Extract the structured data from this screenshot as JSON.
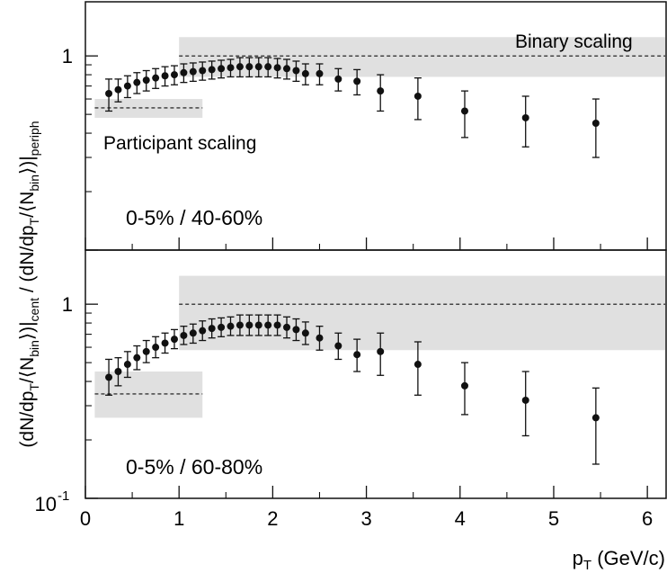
{
  "chart_data": [
    {
      "type": "scatter",
      "panel": "top",
      "label": "0-5% / 40-60%",
      "yscale": "log",
      "ylim": [
        0.1,
        1.9
      ],
      "xlim": [
        0,
        6.2
      ],
      "ytick_labels": [
        "1"
      ],
      "bands": [
        {
          "name": "Binary scaling",
          "x": [
            1.0,
            6.2
          ],
          "y_low": 0.78,
          "y_high": 1.25,
          "center": 1.0
        },
        {
          "name": "Participant scaling",
          "x": [
            0.1,
            1.25
          ],
          "y_low": 0.48,
          "y_high": 0.6,
          "center": 0.54
        }
      ],
      "points": [
        {
          "x": 0.25,
          "y": 0.64,
          "lo": 0.52,
          "hi": 0.76
        },
        {
          "x": 0.35,
          "y": 0.67,
          "lo": 0.58,
          "hi": 0.76
        },
        {
          "x": 0.45,
          "y": 0.7,
          "lo": 0.61,
          "hi": 0.79
        },
        {
          "x": 0.55,
          "y": 0.73,
          "lo": 0.64,
          "hi": 0.82
        },
        {
          "x": 0.65,
          "y": 0.75,
          "lo": 0.66,
          "hi": 0.84
        },
        {
          "x": 0.75,
          "y": 0.77,
          "lo": 0.68,
          "hi": 0.86
        },
        {
          "x": 0.85,
          "y": 0.79,
          "lo": 0.7,
          "hi": 0.88
        },
        {
          "x": 0.95,
          "y": 0.8,
          "lo": 0.71,
          "hi": 0.89
        },
        {
          "x": 1.05,
          "y": 0.82,
          "lo": 0.73,
          "hi": 0.91
        },
        {
          "x": 1.15,
          "y": 0.83,
          "lo": 0.74,
          "hi": 0.92
        },
        {
          "x": 1.25,
          "y": 0.84,
          "lo": 0.75,
          "hi": 0.93
        },
        {
          "x": 1.35,
          "y": 0.85,
          "lo": 0.76,
          "hi": 0.94
        },
        {
          "x": 1.45,
          "y": 0.86,
          "lo": 0.77,
          "hi": 0.95
        },
        {
          "x": 1.55,
          "y": 0.87,
          "lo": 0.78,
          "hi": 0.96
        },
        {
          "x": 1.65,
          "y": 0.88,
          "lo": 0.78,
          "hi": 0.98
        },
        {
          "x": 1.75,
          "y": 0.88,
          "lo": 0.78,
          "hi": 0.98
        },
        {
          "x": 1.85,
          "y": 0.88,
          "lo": 0.78,
          "hi": 0.98
        },
        {
          "x": 1.95,
          "y": 0.88,
          "lo": 0.78,
          "hi": 0.98
        },
        {
          "x": 2.05,
          "y": 0.87,
          "lo": 0.77,
          "hi": 0.97
        },
        {
          "x": 2.15,
          "y": 0.86,
          "lo": 0.76,
          "hi": 0.96
        },
        {
          "x": 2.25,
          "y": 0.84,
          "lo": 0.74,
          "hi": 0.94
        },
        {
          "x": 2.35,
          "y": 0.81,
          "lo": 0.71,
          "hi": 0.91
        },
        {
          "x": 2.5,
          "y": 0.81,
          "lo": 0.71,
          "hi": 0.91
        },
        {
          "x": 2.7,
          "y": 0.76,
          "lo": 0.66,
          "hi": 0.86
        },
        {
          "x": 2.9,
          "y": 0.74,
          "lo": 0.63,
          "hi": 0.85
        },
        {
          "x": 3.15,
          "y": 0.66,
          "lo": 0.52,
          "hi": 0.8
        },
        {
          "x": 3.55,
          "y": 0.62,
          "lo": 0.47,
          "hi": 0.77
        },
        {
          "x": 4.05,
          "y": 0.52,
          "lo": 0.38,
          "hi": 0.66
        },
        {
          "x": 4.7,
          "y": 0.48,
          "lo": 0.34,
          "hi": 0.62
        },
        {
          "x": 5.45,
          "y": 0.45,
          "lo": 0.3,
          "hi": 0.6
        }
      ]
    },
    {
      "type": "scatter",
      "panel": "bottom",
      "label": "0-5% / 60-80%",
      "yscale": "log",
      "ylim": [
        0.1,
        1.9
      ],
      "xlim": [
        0,
        6.2
      ],
      "ytick_labels": [
        "1",
        "10",
        "-1"
      ],
      "bands": [
        {
          "name": "Binary scaling",
          "x": [
            1.0,
            6.2
          ],
          "y_low": 0.58,
          "y_high": 1.4,
          "center": 1.0
        },
        {
          "name": "Participant scaling",
          "x": [
            0.1,
            1.25
          ],
          "y_low": 0.26,
          "y_high": 0.45,
          "center": 0.345
        }
      ],
      "points": [
        {
          "x": 0.25,
          "y": 0.42,
          "lo": 0.34,
          "hi": 0.52
        },
        {
          "x": 0.35,
          "y": 0.45,
          "lo": 0.38,
          "hi": 0.53
        },
        {
          "x": 0.45,
          "y": 0.49,
          "lo": 0.42,
          "hi": 0.57
        },
        {
          "x": 0.55,
          "y": 0.53,
          "lo": 0.46,
          "hi": 0.61
        },
        {
          "x": 0.65,
          "y": 0.57,
          "lo": 0.5,
          "hi": 0.65
        },
        {
          "x": 0.75,
          "y": 0.6,
          "lo": 0.53,
          "hi": 0.68
        },
        {
          "x": 0.85,
          "y": 0.63,
          "lo": 0.56,
          "hi": 0.71
        },
        {
          "x": 0.95,
          "y": 0.66,
          "lo": 0.59,
          "hi": 0.74
        },
        {
          "x": 1.05,
          "y": 0.69,
          "lo": 0.62,
          "hi": 0.77
        },
        {
          "x": 1.15,
          "y": 0.71,
          "lo": 0.63,
          "hi": 0.79
        },
        {
          "x": 1.25,
          "y": 0.73,
          "lo": 0.65,
          "hi": 0.82
        },
        {
          "x": 1.35,
          "y": 0.75,
          "lo": 0.67,
          "hi": 0.84
        },
        {
          "x": 1.45,
          "y": 0.76,
          "lo": 0.68,
          "hi": 0.85
        },
        {
          "x": 1.55,
          "y": 0.77,
          "lo": 0.69,
          "hi": 0.86
        },
        {
          "x": 1.65,
          "y": 0.78,
          "lo": 0.69,
          "hi": 0.88
        },
        {
          "x": 1.75,
          "y": 0.78,
          "lo": 0.69,
          "hi": 0.88
        },
        {
          "x": 1.85,
          "y": 0.78,
          "lo": 0.69,
          "hi": 0.88
        },
        {
          "x": 1.95,
          "y": 0.78,
          "lo": 0.69,
          "hi": 0.88
        },
        {
          "x": 2.05,
          "y": 0.78,
          "lo": 0.69,
          "hi": 0.88
        },
        {
          "x": 2.15,
          "y": 0.76,
          "lo": 0.67,
          "hi": 0.86
        },
        {
          "x": 2.25,
          "y": 0.74,
          "lo": 0.65,
          "hi": 0.84
        },
        {
          "x": 2.35,
          "y": 0.71,
          "lo": 0.62,
          "hi": 0.81
        },
        {
          "x": 2.5,
          "y": 0.67,
          "lo": 0.58,
          "hi": 0.77
        },
        {
          "x": 2.7,
          "y": 0.61,
          "lo": 0.52,
          "hi": 0.71
        },
        {
          "x": 2.9,
          "y": 0.55,
          "lo": 0.45,
          "hi": 0.66
        },
        {
          "x": 3.15,
          "y": 0.57,
          "lo": 0.43,
          "hi": 0.71
        },
        {
          "x": 3.55,
          "y": 0.49,
          "lo": 0.34,
          "hi": 0.64
        },
        {
          "x": 4.05,
          "y": 0.38,
          "lo": 0.27,
          "hi": 0.5
        },
        {
          "x": 4.7,
          "y": 0.32,
          "lo": 0.21,
          "hi": 0.45
        },
        {
          "x": 5.45,
          "y": 0.26,
          "lo": 0.15,
          "hi": 0.37
        }
      ]
    }
  ],
  "annotations": {
    "binary": "Binary scaling",
    "participant": "Participant scaling"
  },
  "x_axis": {
    "ticks": [
      "0",
      "1",
      "2",
      "3",
      "4",
      "5",
      "6"
    ],
    "label_main": "p",
    "label_sub": "T",
    "label_unit": " (GeV/c)"
  },
  "y_axis_label": {
    "p1": "(dN/dp",
    "s1": "T",
    "p2": "/⟨N",
    "s2": "bin",
    "p3": "⟩)|",
    "s3": "cent",
    "p4": " / (dN/dp",
    "s4": "T",
    "p5": "/⟨N",
    "s5": "bin",
    "p6": "⟩)|",
    "s6": "periph"
  },
  "colors": {
    "band": "#e0e0e0",
    "ink": "#111111"
  }
}
